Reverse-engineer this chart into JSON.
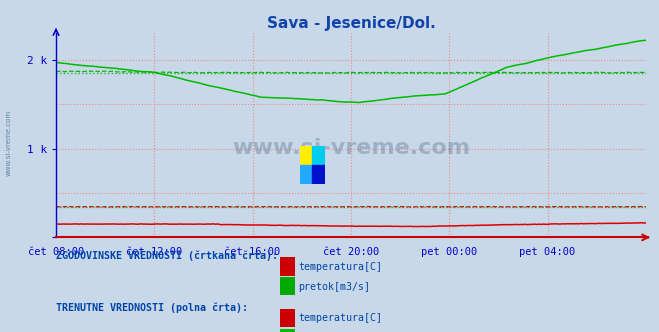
{
  "title": "Sava - Jesenice/Dol.",
  "title_color": "#1144aa",
  "bg_color": "#c8d8e8",
  "plot_bg_color": "#c8d8e8",
  "axis_color": "#0000cc",
  "x_labels": [
    "čet 08:00",
    "čet 12:00",
    "čet 16:00",
    "čet 20:00",
    "pet 00:00",
    "pet 04:00"
  ],
  "x_ticks": [
    0,
    48,
    96,
    144,
    192,
    240
  ],
  "ylim": [
    0,
    2300
  ],
  "xlim": [
    0,
    288
  ],
  "watermark_text": "www.si-vreme.com",
  "legend_hist_label": "ZGODOVINSKE VREDNOSTI (črtkana črta):",
  "legend_curr_label": "TRENUTNE VREDNOSTI (polna črta):",
  "legend_temp_label": "temperatura[C]",
  "legend_flow_label": "pretok[m3/s]",
  "legend_font_color": "#0044aa",
  "color_temp": "#dd0000",
  "color_flow": "#00bb00",
  "color_hist_temp": "#cc0000",
  "color_hist_flow": "#00aa00",
  "n_points": 289,
  "dpi": 100,
  "figsize": [
    6.59,
    3.32
  ]
}
